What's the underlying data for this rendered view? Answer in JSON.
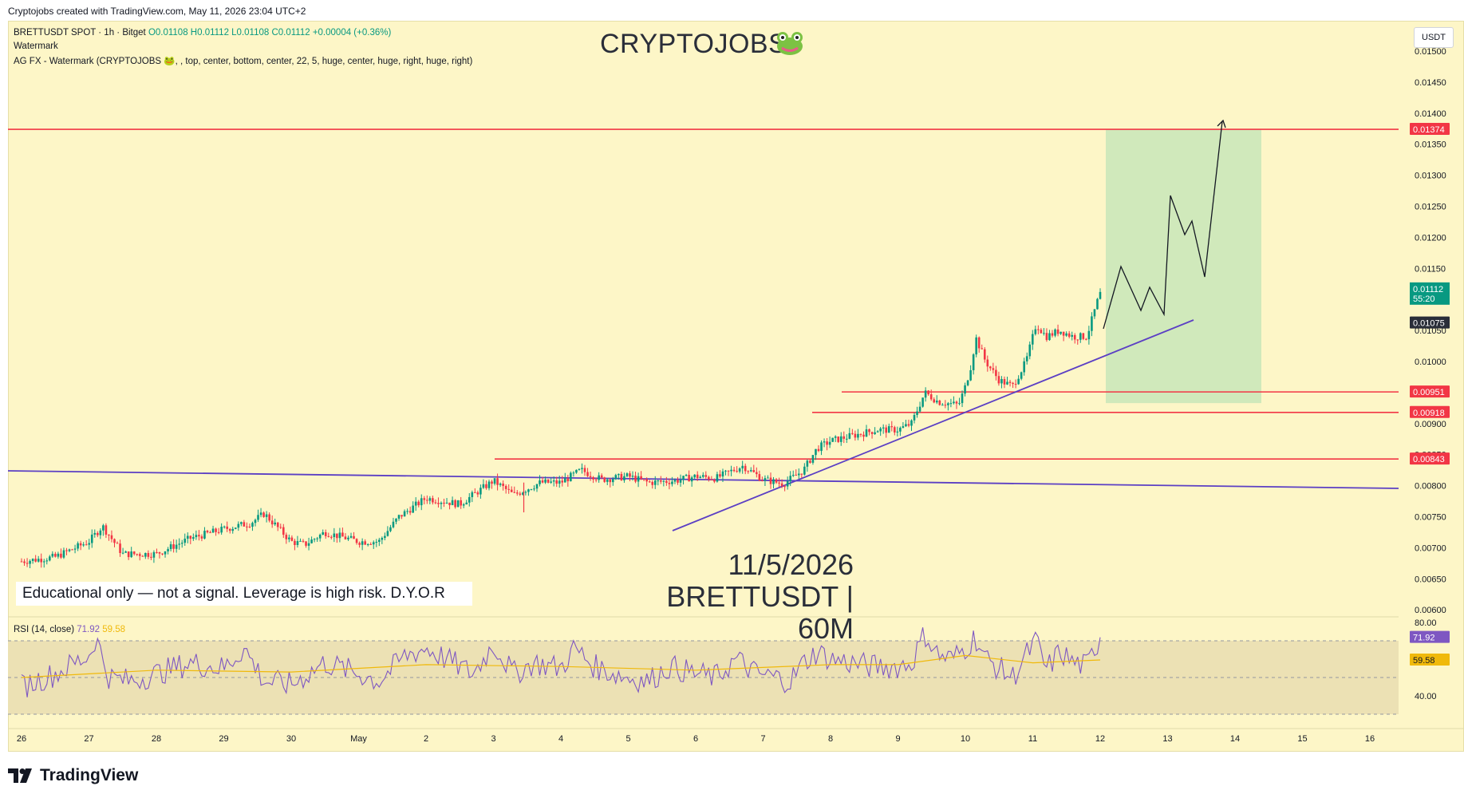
{
  "header": {
    "creator_line": "Cryptojobs created with TradingView.com, May 11, 2026 23:04 UTC+2"
  },
  "legend": {
    "symbol_line": "BRETTUSDT SPOT · 1h · Bitget",
    "ohlc": "O0.01108 H0.01112 L0.01108 C0.01112 +0.00004 (+0.36%)",
    "indicator1": "Watermark",
    "indicator2": "AG FX - Watermark (CRYPTOJOBS 🐸, , top, center, bottom, center, 22, 5, huge, center, huge, right, huge, right)"
  },
  "watermark": {
    "title": "CRYPTOJOBS",
    "date": "11/5/2026",
    "pair": "BRETTUSDT | 60M"
  },
  "disclaimer": "Educational only — not a signal. Leverage is high risk. D.Y.O.R",
  "currency_button": "USDT",
  "branding": "TradingView",
  "rsi": {
    "label": "RSI (14, close)",
    "value": "71.92",
    "ma_value": "59.58",
    "ticks": [
      "80.00",
      "40.00"
    ]
  },
  "colors": {
    "background": "#fdf6c7",
    "up_candle": "#089981",
    "down_candle": "#f23645",
    "level_line": "#f23645",
    "trend_line": "#5b3fc4",
    "target_zone": "#c8e6b9",
    "rsi_line": "#7e57c2",
    "rsi_ma": "#f0b90b"
  },
  "chart_data": {
    "type": "candlestick",
    "symbol": "BRETTUSDT",
    "interval": "1h",
    "price_axis": {
      "ticks": [
        "0.01500",
        "0.01450",
        "0.01400",
        "0.01350",
        "0.01300",
        "0.01250",
        "0.01200",
        "0.01150",
        "0.01100",
        "0.01050",
        "0.01000",
        "0.00950",
        "0.00900",
        "0.00850",
        "0.00800",
        "0.00750",
        "0.00700",
        "0.00650",
        "0.00600"
      ],
      "range": [
        0.006,
        0.0152
      ]
    },
    "time_axis": {
      "labels": [
        "26",
        "27",
        "28",
        "29",
        "30",
        "May",
        "2",
        "3",
        "4",
        "5",
        "6",
        "7",
        "8",
        "9",
        "10",
        "11",
        "12",
        "13",
        "14",
        "15",
        "16"
      ]
    },
    "close_series": [
      {
        "t": 0,
        "p": 0.00678
      },
      {
        "t": 0.5,
        "p": 0.00685
      },
      {
        "t": 1,
        "p": 0.0071
      },
      {
        "t": 1.2,
        "p": 0.00735
      },
      {
        "t": 1.5,
        "p": 0.0069
      },
      {
        "t": 2,
        "p": 0.0069
      },
      {
        "t": 2.5,
        "p": 0.00715
      },
      {
        "t": 3,
        "p": 0.0073
      },
      {
        "t": 3.4,
        "p": 0.0074
      },
      {
        "t": 3.6,
        "p": 0.00755
      },
      {
        "t": 4,
        "p": 0.0071
      },
      {
        "t": 4.2,
        "p": 0.00705
      },
      {
        "t": 4.5,
        "p": 0.00725
      },
      {
        "t": 5,
        "p": 0.0071
      },
      {
        "t": 5.3,
        "p": 0.0071
      },
      {
        "t": 5.6,
        "p": 0.0075
      },
      {
        "t": 6,
        "p": 0.0078
      },
      {
        "t": 6.5,
        "p": 0.0077
      },
      {
        "t": 7,
        "p": 0.00808
      },
      {
        "t": 7.3,
        "p": 0.00785
      },
      {
        "t": 7.7,
        "p": 0.00805
      },
      {
        "t": 8,
        "p": 0.00805
      },
      {
        "t": 8.3,
        "p": 0.00825
      },
      {
        "t": 8.6,
        "p": 0.0081
      },
      {
        "t": 9,
        "p": 0.00815
      },
      {
        "t": 9.3,
        "p": 0.00805
      },
      {
        "t": 9.7,
        "p": 0.00808
      },
      {
        "t": 10,
        "p": 0.00815
      },
      {
        "t": 10.3,
        "p": 0.00812
      },
      {
        "t": 10.7,
        "p": 0.00832
      },
      {
        "t": 11,
        "p": 0.0081
      },
      {
        "t": 11.3,
        "p": 0.00803
      },
      {
        "t": 11.6,
        "p": 0.00825
      },
      {
        "t": 11.8,
        "p": 0.0086
      },
      {
        "t": 12,
        "p": 0.00872
      },
      {
        "t": 12.3,
        "p": 0.0088
      },
      {
        "t": 12.7,
        "p": 0.0089
      },
      {
        "t": 13,
        "p": 0.0089
      },
      {
        "t": 13.2,
        "p": 0.009
      },
      {
        "t": 13.4,
        "p": 0.0095
      },
      {
        "t": 13.6,
        "p": 0.00935
      },
      {
        "t": 13.9,
        "p": 0.0093
      },
      {
        "t": 14,
        "p": 0.0096
      },
      {
        "t": 14.1,
        "p": 0.01
      },
      {
        "t": 14.15,
        "p": 0.0104
      },
      {
        "t": 14.3,
        "p": 0.01
      },
      {
        "t": 14.5,
        "p": 0.0097
      },
      {
        "t": 14.7,
        "p": 0.0096
      },
      {
        "t": 14.9,
        "p": 0.01
      },
      {
        "t": 15.05,
        "p": 0.0106
      },
      {
        "t": 15.2,
        "p": 0.0104
      },
      {
        "t": 15.4,
        "p": 0.0105
      },
      {
        "t": 15.6,
        "p": 0.0104
      },
      {
        "t": 15.8,
        "p": 0.0104
      },
      {
        "t": 16,
        "p": 0.01112
      }
    ],
    "last_price": "0.01112",
    "countdown": "55:20",
    "prev_close": "0.01075",
    "horizontal_levels": [
      "0.01374",
      "0.00951",
      "0.00918",
      "0.00843"
    ],
    "target": "0.01374",
    "target_zone": [
      0.00933,
      0.01374
    ],
    "rsi_series": [
      {
        "t": 0,
        "v": 45
      },
      {
        "t": 0.5,
        "v": 52
      },
      {
        "t": 1,
        "v": 62
      },
      {
        "t": 1.1,
        "v": 72
      },
      {
        "t": 1.3,
        "v": 50
      },
      {
        "t": 1.6,
        "v": 48
      },
      {
        "t": 2,
        "v": 52
      },
      {
        "t": 2.5,
        "v": 58
      },
      {
        "t": 3,
        "v": 55
      },
      {
        "t": 3.3,
        "v": 66
      },
      {
        "t": 3.6,
        "v": 48
      },
      {
        "t": 4,
        "v": 46
      },
      {
        "t": 4.5,
        "v": 58
      },
      {
        "t": 5,
        "v": 52
      },
      {
        "t": 5.3,
        "v": 48
      },
      {
        "t": 5.7,
        "v": 62
      },
      {
        "t": 6,
        "v": 66
      },
      {
        "t": 6.4,
        "v": 58
      },
      {
        "t": 6.7,
        "v": 52
      },
      {
        "t": 7,
        "v": 68
      },
      {
        "t": 7.3,
        "v": 52
      },
      {
        "t": 7.6,
        "v": 58
      },
      {
        "t": 8,
        "v": 55
      },
      {
        "t": 8.2,
        "v": 66
      },
      {
        "t": 8.5,
        "v": 56
      },
      {
        "t": 8.8,
        "v": 52
      },
      {
        "t": 9,
        "v": 50
      },
      {
        "t": 9.3,
        "v": 48
      },
      {
        "t": 9.6,
        "v": 56
      },
      {
        "t": 10,
        "v": 52
      },
      {
        "t": 10.3,
        "v": 50
      },
      {
        "t": 10.6,
        "v": 60
      },
      {
        "t": 10.9,
        "v": 52
      },
      {
        "t": 11.2,
        "v": 50
      },
      {
        "t": 11.4,
        "v": 48
      },
      {
        "t": 11.6,
        "v": 58
      },
      {
        "t": 11.8,
        "v": 64
      },
      {
        "t": 12,
        "v": 60
      },
      {
        "t": 12.3,
        "v": 58
      },
      {
        "t": 12.6,
        "v": 56
      },
      {
        "t": 13,
        "v": 56
      },
      {
        "t": 13.2,
        "v": 58
      },
      {
        "t": 13.4,
        "v": 74
      },
      {
        "t": 13.6,
        "v": 62
      },
      {
        "t": 13.8,
        "v": 60
      },
      {
        "t": 14,
        "v": 66
      },
      {
        "t": 14.15,
        "v": 72
      },
      {
        "t": 14.3,
        "v": 60
      },
      {
        "t": 14.5,
        "v": 55
      },
      {
        "t": 14.7,
        "v": 50
      },
      {
        "t": 14.9,
        "v": 62
      },
      {
        "t": 15.05,
        "v": 70
      },
      {
        "t": 15.2,
        "v": 54
      },
      {
        "t": 15.4,
        "v": 64
      },
      {
        "t": 15.6,
        "v": 58
      },
      {
        "t": 15.8,
        "v": 56
      },
      {
        "t": 16,
        "v": 71.92
      }
    ],
    "rsi_ma_series": [
      {
        "t": 0,
        "v": 50
      },
      {
        "t": 2,
        "v": 54
      },
      {
        "t": 4,
        "v": 53
      },
      {
        "t": 6,
        "v": 57
      },
      {
        "t": 8,
        "v": 56
      },
      {
        "t": 10,
        "v": 54
      },
      {
        "t": 12,
        "v": 57
      },
      {
        "t": 13,
        "v": 57
      },
      {
        "t": 14,
        "v": 62
      },
      {
        "t": 15,
        "v": 58
      },
      {
        "t": 16,
        "v": 59.58
      }
    ],
    "rsi_axis": {
      "range": [
        20,
        85
      ],
      "bands": [
        70,
        50,
        30
      ]
    }
  }
}
